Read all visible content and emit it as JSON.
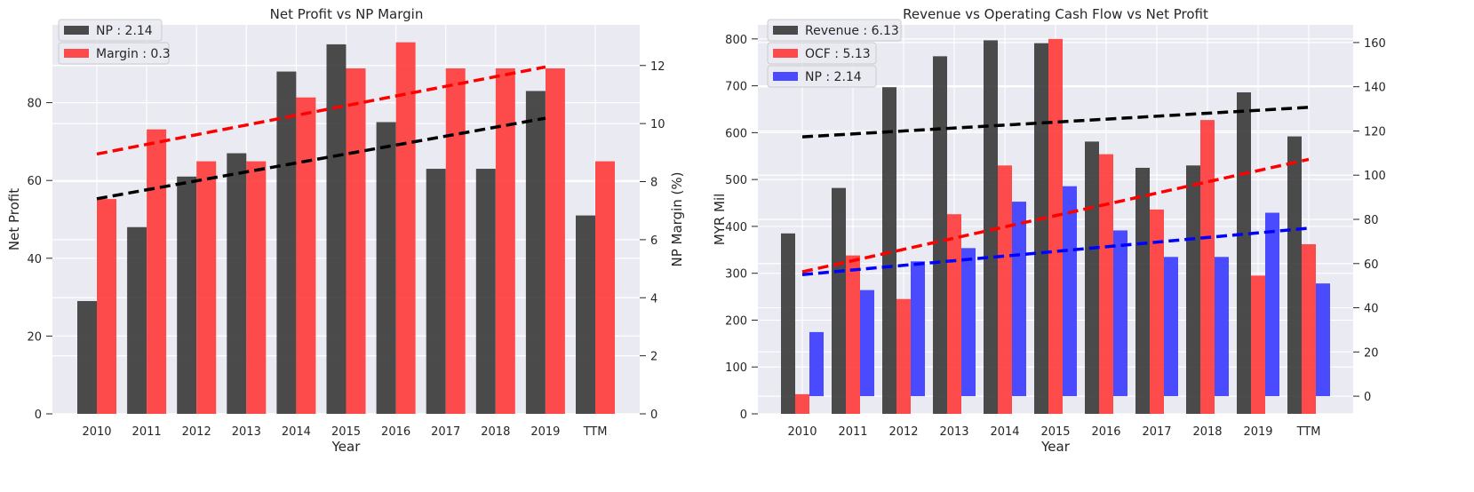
{
  "chart_data": [
    {
      "type": "bar",
      "title": "Net Profit vs NP Margin",
      "xlabel": "Year",
      "ylabel": "Net Profit",
      "ylabel_right": "NP Margin (%)",
      "categories": [
        "2010",
        "2011",
        "2012",
        "2013",
        "2014",
        "2015",
        "2016",
        "2017",
        "2018",
        "2019",
        "TTM"
      ],
      "ylim": [
        0,
        100
      ],
      "yticks": [
        0,
        20,
        40,
        60,
        80
      ],
      "ylim_right": [
        0,
        13.4
      ],
      "yticks_right": [
        0,
        2,
        4,
        6,
        8,
        10,
        12
      ],
      "grid": true,
      "series": [
        {
          "name": "NP : 2.14",
          "axis": "left",
          "color": "#333333",
          "values": [
            29,
            48,
            61,
            67,
            88,
            95,
            75,
            63,
            63,
            83,
            51
          ]
        },
        {
          "name": "Margin : 0.3",
          "axis": "right",
          "color": "#ff3333",
          "values": [
            7.4,
            9.8,
            8.7,
            8.7,
            10.9,
            11.9,
            12.8,
            11.9,
            11.9,
            11.9,
            8.7
          ]
        }
      ],
      "trendlines": [
        {
          "axis": "left",
          "color": "#000000",
          "from": [
            "2010",
            55.3
          ],
          "to": [
            "2019",
            76.0
          ]
        },
        {
          "axis": "right",
          "color": "#ff0000",
          "from": [
            "2010",
            8.95
          ],
          "to": [
            "2019",
            11.95
          ]
        }
      ],
      "legend": "top-left"
    },
    {
      "type": "bar",
      "title": "Revenue vs Operating Cash Flow vs Net Profit",
      "xlabel": "Year",
      "ylabel": "MYR Mil",
      "categories": [
        "2010",
        "2011",
        "2012",
        "2013",
        "2014",
        "2015",
        "2016",
        "2017",
        "2018",
        "2019",
        "TTM"
      ],
      "ylim": [
        0,
        830
      ],
      "yticks": [
        0,
        100,
        200,
        300,
        400,
        500,
        600,
        700,
        800
      ],
      "ylim_right": [
        -8,
        168
      ],
      "yticks_right": [
        0,
        20,
        40,
        60,
        80,
        100,
        120,
        140,
        160
      ],
      "grid": true,
      "series": [
        {
          "name": "Revenue : 6.13",
          "axis": "left",
          "color": "#333333",
          "values": [
            385,
            482,
            697,
            763,
            797,
            791,
            581,
            525,
            530,
            686,
            592
          ]
        },
        {
          "name": "OCF : 5.13",
          "axis": "left",
          "color": "#ff3333",
          "values": [
            42,
            338,
            245,
            426,
            530,
            800,
            554,
            436,
            627,
            295,
            362
          ]
        },
        {
          "name": "NP : 2.14",
          "axis": "right",
          "color": "#3333ff",
          "values": [
            29,
            48,
            61,
            67,
            88,
            95,
            75,
            63,
            63,
            83,
            51
          ]
        }
      ],
      "trendlines": [
        {
          "axis": "left",
          "color": "#000000",
          "from": [
            "2010",
            591
          ],
          "to": [
            "TTM",
            654
          ]
        },
        {
          "axis": "left",
          "color": "#ff0000",
          "from": [
            "2010",
            303
          ],
          "to": [
            "TTM",
            543
          ]
        },
        {
          "axis": "right",
          "color": "#0000ff",
          "from": [
            "2010",
            55
          ],
          "to": [
            "TTM",
            76
          ]
        }
      ],
      "legend": "top-left"
    }
  ]
}
